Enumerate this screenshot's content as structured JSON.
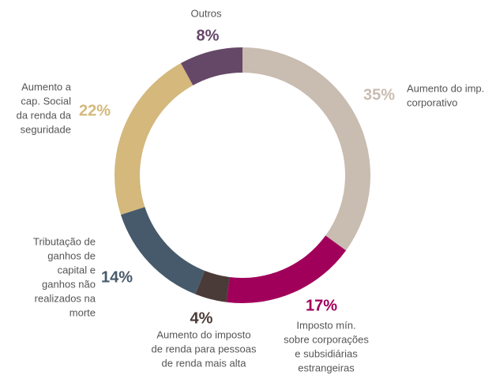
{
  "chart_data": {
    "type": "donut",
    "categories": [
      [
        "Aumento do imp.",
        "corporativo"
      ],
      [
        "Imposto mín.",
        "sobre corporações",
        "e subsidiárias",
        "estrangeiras"
      ],
      [
        "Aumento do imposto",
        "de renda para pessoas",
        "de renda mais alta"
      ],
      [
        "Tributação de",
        "ganhos de",
        "capital e",
        "ganhos não",
        "realizados na",
        "morte"
      ],
      [
        "Aumento a",
        "cap. Social",
        "da renda da",
        "seguridade"
      ],
      [
        "Outros"
      ]
    ],
    "values": [
      35,
      17,
      4,
      14,
      22,
      8
    ],
    "value_labels": [
      "35%",
      "17%",
      "4%",
      "14%",
      "22%",
      "8%"
    ],
    "colors": [
      "#c9bcb0",
      "#a0005a",
      "#4a3b38",
      "#475a6b",
      "#d4b87c",
      "#654868"
    ]
  }
}
